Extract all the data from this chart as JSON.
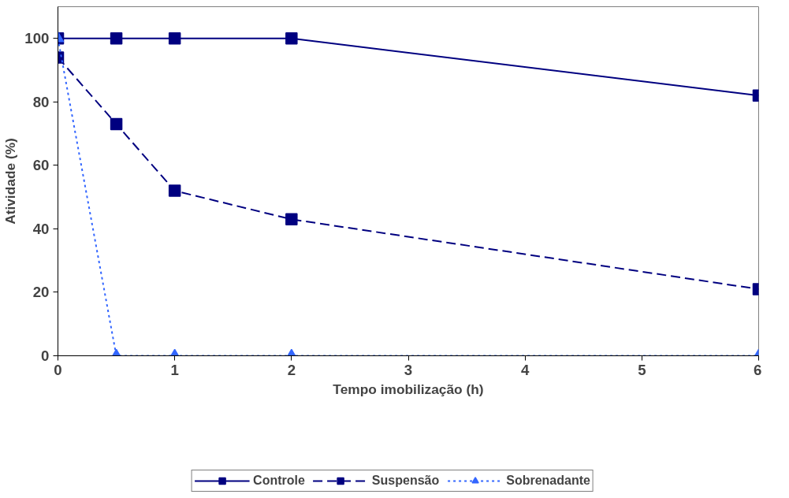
{
  "chart_data": {
    "type": "line",
    "xlabel": "Tempo imobilização (h)",
    "ylabel": "Atividade (%)",
    "x": [
      0,
      0.5,
      1,
      2,
      6
    ],
    "series": [
      {
        "name": "Controle",
        "color": "#000080",
        "values": [
          100,
          100,
          100,
          100,
          82
        ],
        "marker": "square",
        "line_style": "solid"
      },
      {
        "name": "Suspensão",
        "color": "#000080",
        "values": [
          94,
          73,
          52,
          43,
          21
        ],
        "marker": "square",
        "line_style": "dashed"
      },
      {
        "name": "Sobrenadante",
        "color": "#3366ff",
        "values": [
          100,
          0,
          0,
          0,
          0
        ],
        "marker": "triangle",
        "line_style": "dotted"
      }
    ],
    "xlim": [
      0,
      6
    ],
    "xticks": [
      0,
      1,
      2,
      3,
      4,
      5,
      6
    ],
    "ylim": [
      0,
      110
    ],
    "yticks": [
      0,
      20,
      40,
      60,
      80,
      100
    ],
    "grid": false,
    "legend": "bottom"
  }
}
